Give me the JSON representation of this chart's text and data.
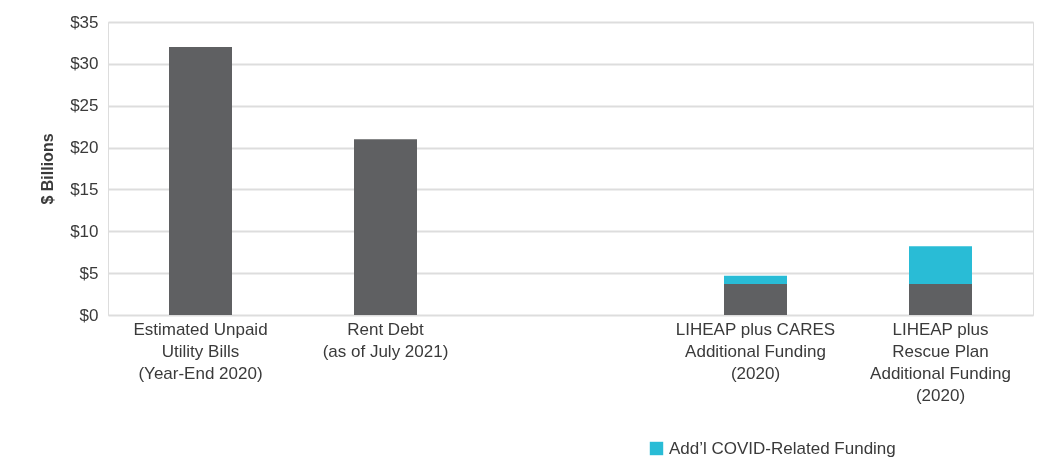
{
  "chart_data": {
    "type": "bar",
    "stacked": true,
    "ylabel": "$ Billions",
    "categories": [
      "Estimated Unpaid\nUtility Bills\n(Year-End 2020)",
      "Rent Debt\n(as of July 2021)",
      null,
      "LIHEAP plus CARES\nAdditional Funding\n(2020)",
      "LIHEAP plus\nRescue Plan\nAdditional Funding\n(2020)"
    ],
    "series": [
      {
        "color": "#5f6062",
        "values": [
          32,
          21,
          null,
          3.7,
          3.7
        ]
      },
      {
        "name": "Add’l COVID-Related Funding",
        "color": "#29bcd6",
        "values": [
          null,
          null,
          null,
          1.0,
          4.5
        ]
      }
    ],
    "ylim": [
      0,
      35
    ],
    "yticks": [
      {
        "value": 0,
        "label": "$0"
      },
      {
        "value": 5,
        "label": "$5"
      },
      {
        "value": 10,
        "label": "$10"
      },
      {
        "value": 15,
        "label": "$15"
      },
      {
        "value": 20,
        "label": "$20"
      },
      {
        "value": 25,
        "label": "$25"
      },
      {
        "value": 30,
        "label": "$30"
      },
      {
        "value": 35,
        "label": "$35"
      }
    ],
    "grid": "y",
    "legend": "bottom right"
  }
}
